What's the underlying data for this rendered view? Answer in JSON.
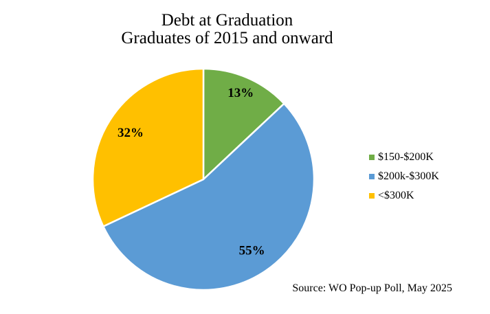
{
  "chart_data": {
    "type": "pie",
    "title_lines": [
      "Debt at Graduation",
      "Graduates of 2015 and onward"
    ],
    "slices": [
      {
        "label": "$150-$200K",
        "value": 13,
        "value_label": "13%",
        "color": "#70AD47"
      },
      {
        "label": "$200k-$300K",
        "value": 55,
        "value_label": "55%",
        "color": "#5B9BD5"
      },
      {
        "label": "<$300K",
        "value": 32,
        "value_label": "32%",
        "color": "#FFC000"
      }
    ],
    "start_angle_deg": 0,
    "direction": "clockwise",
    "slice_border_color": "#ffffff",
    "legend_position": "right",
    "source_note": "Source: WO Pop-up Poll, May 2025"
  }
}
